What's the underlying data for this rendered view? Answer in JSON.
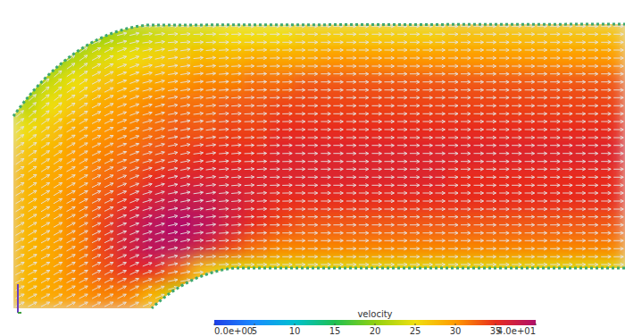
{
  "chart_data": {
    "type": "vector_field",
    "colorbar": {
      "label": "velocity",
      "range": [
        0,
        40
      ],
      "ticks": [
        {
          "value": 0,
          "label": "0.0e+00"
        },
        5,
        10,
        15,
        20,
        25,
        30,
        35,
        {
          "value": 40,
          "label": "4.0e+01"
        }
      ]
    },
    "cells": [
      [
        null,
        null,
        18,
        20,
        22,
        23,
        24,
        24,
        25,
        25,
        25,
        26,
        26,
        26,
        26,
        26,
        26,
        27,
        27,
        27,
        27,
        27,
        27,
        27
      ],
      [
        null,
        18,
        22,
        24,
        25,
        26,
        27,
        28,
        28,
        29,
        29,
        29,
        30,
        30,
        30,
        30,
        30,
        30,
        30,
        30,
        30,
        30,
        30,
        30
      ],
      [
        18,
        23,
        25,
        27,
        28,
        29,
        30,
        31,
        31,
        32,
        32,
        33,
        33,
        33,
        33,
        33,
        33,
        33,
        33,
        33,
        33,
        33,
        33,
        33
      ],
      [
        22,
        25,
        27,
        29,
        30,
        31,
        32,
        32,
        33,
        33,
        34,
        34,
        34,
        34,
        34,
        34,
        34,
        34,
        34,
        34,
        34,
        34,
        34,
        34
      ],
      [
        25,
        27,
        29,
        30,
        31,
        32,
        33,
        33,
        34,
        34,
        35,
        35,
        35,
        35,
        35,
        35,
        35,
        35,
        35,
        35,
        35,
        35,
        35,
        35
      ],
      [
        27,
        28,
        30,
        31,
        32,
        33,
        34,
        35,
        35,
        35,
        36,
        36,
        36,
        36,
        36,
        36,
        36,
        36,
        36,
        36,
        36,
        36,
        36,
        36
      ],
      [
        28,
        29,
        30,
        32,
        33,
        35,
        36,
        36,
        36,
        36,
        36,
        36,
        36,
        36,
        36,
        36,
        36,
        35,
        35,
        35,
        35,
        35,
        35,
        35
      ],
      [
        28,
        29,
        31,
        33,
        35,
        37,
        38,
        38,
        37,
        36,
        35,
        35,
        35,
        35,
        35,
        35,
        35,
        35,
        35,
        35,
        35,
        35,
        35,
        35
      ],
      [
        28,
        29,
        31,
        34,
        37,
        39,
        40,
        39,
        37,
        35,
        34,
        33,
        33,
        33,
        33,
        33,
        33,
        33,
        33,
        33,
        33,
        33,
        33,
        33
      ],
      [
        28,
        29,
        31,
        34,
        37,
        39,
        39,
        37,
        34,
        32,
        31,
        31,
        31,
        31,
        31,
        31,
        31,
        31,
        31,
        31,
        31,
        31,
        31,
        31
      ],
      [
        28,
        29,
        31,
        33,
        35,
        35,
        32,
        27,
        24,
        24,
        24,
        24,
        24,
        24,
        24,
        24,
        24,
        24,
        24,
        24,
        24,
        24,
        24,
        24
      ],
      [
        28,
        29,
        30,
        31,
        31,
        28,
        22,
        null,
        null,
        null,
        null,
        null,
        null,
        null,
        null,
        null,
        null,
        null,
        null,
        null,
        null,
        null,
        null,
        null
      ]
    ],
    "angles": [
      [
        null,
        null,
        30,
        22,
        14,
        8,
        4,
        2,
        1,
        0,
        0,
        0,
        0,
        0,
        0,
        0,
        0,
        0,
        0,
        0,
        0,
        0,
        0,
        0
      ],
      [
        null,
        42,
        36,
        28,
        20,
        13,
        8,
        5,
        3,
        2,
        1,
        0,
        0,
        0,
        0,
        0,
        0,
        0,
        0,
        0,
        0,
        0,
        0,
        0
      ],
      [
        45,
        40,
        34,
        27,
        20,
        14,
        9,
        6,
        4,
        2,
        1,
        0,
        0,
        0,
        0,
        0,
        0,
        0,
        0,
        0,
        0,
        0,
        0,
        0
      ],
      [
        42,
        38,
        33,
        27,
        21,
        15,
        10,
        7,
        4,
        2,
        1,
        0,
        0,
        0,
        0,
        0,
        0,
        0,
        0,
        0,
        0,
        0,
        0,
        0
      ],
      [
        38,
        35,
        31,
        26,
        21,
        16,
        11,
        7,
        4,
        2,
        1,
        0,
        0,
        0,
        0,
        0,
        0,
        0,
        0,
        0,
        0,
        0,
        0,
        0
      ],
      [
        35,
        33,
        30,
        26,
        21,
        16,
        12,
        8,
        5,
        2,
        1,
        0,
        0,
        0,
        0,
        0,
        0,
        0,
        0,
        0,
        0,
        0,
        0,
        0
      ],
      [
        33,
        31,
        29,
        26,
        22,
        17,
        12,
        8,
        5,
        3,
        1,
        0,
        0,
        0,
        0,
        0,
        0,
        0,
        0,
        0,
        0,
        0,
        0,
        0
      ],
      [
        31,
        30,
        28,
        26,
        22,
        17,
        12,
        8,
        5,
        3,
        1,
        0,
        0,
        0,
        0,
        0,
        0,
        0,
        0,
        0,
        0,
        0,
        0,
        0
      ],
      [
        30,
        29,
        28,
        26,
        22,
        17,
        12,
        7,
        4,
        2,
        0,
        0,
        0,
        0,
        0,
        0,
        0,
        0,
        0,
        0,
        0,
        0,
        0,
        0
      ],
      [
        29,
        28,
        28,
        26,
        23,
        18,
        12,
        6,
        3,
        1,
        0,
        0,
        0,
        0,
        0,
        0,
        0,
        0,
        0,
        0,
        0,
        0,
        0,
        0
      ],
      [
        28,
        28,
        28,
        27,
        25,
        20,
        12,
        5,
        2,
        0,
        0,
        0,
        0,
        0,
        0,
        0,
        0,
        0,
        0,
        0,
        0,
        0,
        0,
        0
      ],
      [
        28,
        28,
        28,
        28,
        27,
        24,
        16,
        null,
        null,
        null,
        null,
        null,
        null,
        null,
        null,
        null,
        null,
        null,
        null,
        null,
        null,
        null,
        null,
        null
      ]
    ]
  }
}
